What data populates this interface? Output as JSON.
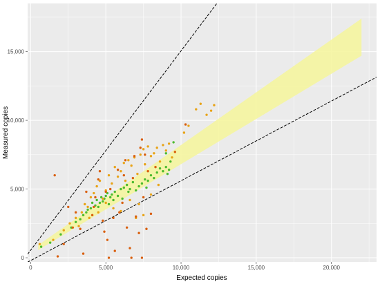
{
  "chart_data": {
    "type": "scatter",
    "title": "",
    "xlabel": "Expected copies",
    "ylabel": "Measured copies",
    "xlim": [
      -200,
      23000
    ],
    "ylim": [
      -300,
      18500
    ],
    "x_ticks": [
      0,
      5000,
      10000,
      15000,
      20000
    ],
    "x_tick_labels": [
      "0",
      "5,000",
      "10,000",
      "15,000",
      "20,000"
    ],
    "y_ticks": [
      0,
      5000,
      10000,
      15000
    ],
    "y_tick_labels": [
      "0",
      "5,000",
      "10,000",
      "15,000"
    ],
    "grid": true,
    "legend": "none",
    "background_color": "#ebebeb",
    "gridline_color": "#ffffff",
    "band": {
      "color": "#f5f5a0",
      "x": [
        500,
        22000
      ],
      "lower": [
        560,
        14700
      ],
      "upper": [
        920,
        17400
      ]
    },
    "reference_lines": [
      {
        "slope": 1.45,
        "intercept": 550,
        "style": "dashed",
        "color": "#000000"
      },
      {
        "slope": 0.58,
        "intercept": -200,
        "style": "dashed",
        "color": "#000000"
      }
    ],
    "series": [
      {
        "color": "#4cbb2f",
        "points": [
          [
            700,
            800
          ],
          [
            1300,
            1100
          ],
          [
            2000,
            1700
          ],
          [
            2700,
            2200
          ],
          [
            3000,
            2600
          ],
          [
            3300,
            2800
          ],
          [
            3500,
            3100
          ],
          [
            3700,
            3300
          ],
          [
            3800,
            3500
          ],
          [
            4000,
            3600
          ],
          [
            4100,
            4000
          ],
          [
            4300,
            3800
          ],
          [
            4400,
            4200
          ],
          [
            4500,
            3700
          ],
          [
            4600,
            4000
          ],
          [
            4700,
            4400
          ],
          [
            4800,
            4100
          ],
          [
            4900,
            4300
          ],
          [
            5000,
            4500
          ],
          [
            5100,
            4700
          ],
          [
            5200,
            3900
          ],
          [
            5300,
            4400
          ],
          [
            5400,
            4600
          ],
          [
            5500,
            4200
          ],
          [
            5600,
            4800
          ],
          [
            5800,
            4500
          ],
          [
            6000,
            5000
          ],
          [
            6100,
            4300
          ],
          [
            6200,
            5100
          ],
          [
            6400,
            5300
          ],
          [
            6500,
            4800
          ],
          [
            6600,
            5000
          ],
          [
            6800,
            5500
          ],
          [
            7000,
            4900
          ],
          [
            7200,
            5200
          ],
          [
            7400,
            5400
          ],
          [
            7600,
            5700
          ],
          [
            7700,
            5100
          ],
          [
            7800,
            5600
          ],
          [
            8000,
            6000
          ],
          [
            8200,
            5800
          ],
          [
            8400,
            6200
          ],
          [
            8600,
            6500
          ],
          [
            8800,
            6300
          ],
          [
            9000,
            6600
          ],
          [
            9100,
            6100
          ],
          [
            9200,
            6400
          ],
          [
            9300,
            7000
          ],
          [
            9500,
            8400
          ],
          [
            9000,
            7600
          ]
        ]
      },
      {
        "color": "#e8a317",
        "points": [
          [
            600,
            1000
          ],
          [
            1500,
            1300
          ],
          [
            2200,
            2000
          ],
          [
            2600,
            2500
          ],
          [
            3000,
            2900
          ],
          [
            3400,
            3300
          ],
          [
            3600,
            3900
          ],
          [
            3800,
            3700
          ],
          [
            4000,
            4400
          ],
          [
            4200,
            4700
          ],
          [
            4400,
            5200
          ],
          [
            4600,
            5600
          ],
          [
            4800,
            4300
          ],
          [
            5000,
            4900
          ],
          [
            5200,
            6000
          ],
          [
            5400,
            5400
          ],
          [
            5600,
            6600
          ],
          [
            5800,
            5900
          ],
          [
            6000,
            6300
          ],
          [
            6200,
            6900
          ],
          [
            6300,
            5600
          ],
          [
            6500,
            7100
          ],
          [
            6700,
            6700
          ],
          [
            6900,
            7300
          ],
          [
            7100,
            6100
          ],
          [
            7300,
            7500
          ],
          [
            7500,
            7900
          ],
          [
            7600,
            6800
          ],
          [
            7800,
            8100
          ],
          [
            8000,
            7400
          ],
          [
            8200,
            7600
          ],
          [
            8400,
            8000
          ],
          [
            8600,
            7000
          ],
          [
            8800,
            8200
          ],
          [
            9000,
            7800
          ],
          [
            9200,
            8300
          ],
          [
            9400,
            7300
          ],
          [
            10200,
            9100
          ],
          [
            10500,
            9600
          ],
          [
            11000,
            10800
          ],
          [
            11300,
            11200
          ],
          [
            11700,
            10400
          ],
          [
            12000,
            10700
          ],
          [
            12200,
            11100
          ],
          [
            5000,
            4000
          ],
          [
            5500,
            3600
          ],
          [
            6000,
            3400
          ],
          [
            6600,
            4200
          ],
          [
            7200,
            3900
          ],
          [
            7500,
            3100
          ],
          [
            8000,
            4600
          ],
          [
            8500,
            5300
          ],
          [
            7000,
            2900
          ],
          [
            4500,
            3300
          ],
          [
            3900,
            2900
          ],
          [
            3200,
            2300
          ]
        ]
      },
      {
        "color": "#d95f0e",
        "points": [
          [
            1600,
            6000
          ],
          [
            1800,
            100
          ],
          [
            2200,
            1000
          ],
          [
            2500,
            3700
          ],
          [
            3300,
            2100
          ],
          [
            3500,
            300
          ],
          [
            3700,
            4800
          ],
          [
            4100,
            3100
          ],
          [
            4300,
            4400
          ],
          [
            4500,
            5700
          ],
          [
            4600,
            6300
          ],
          [
            4800,
            2700
          ],
          [
            4900,
            1900
          ],
          [
            5100,
            1300
          ],
          [
            5300,
            5000
          ],
          [
            5500,
            2900
          ],
          [
            5600,
            500
          ],
          [
            5800,
            6400
          ],
          [
            5900,
            3300
          ],
          [
            6100,
            4000
          ],
          [
            6300,
            7100
          ],
          [
            6400,
            2200
          ],
          [
            6600,
            700
          ],
          [
            6800,
            5800
          ],
          [
            6900,
            7400
          ],
          [
            7000,
            3000
          ],
          [
            7200,
            1800
          ],
          [
            7300,
            8000
          ],
          [
            7400,
            8600
          ],
          [
            7500,
            4400
          ],
          [
            7600,
            7500
          ],
          [
            7700,
            2100
          ],
          [
            7800,
            6300
          ],
          [
            8000,
            3200
          ],
          [
            8300,
            6600
          ],
          [
            6200,
            6000
          ],
          [
            5000,
            4800
          ],
          [
            3000,
            3300
          ],
          [
            2800,
            2200
          ],
          [
            6700,
            0
          ],
          [
            7400,
            0
          ],
          [
            5200,
            0
          ],
          [
            10300,
            9700
          ],
          [
            9600,
            7700
          ],
          [
            4200,
            3700
          ]
        ]
      }
    ]
  }
}
